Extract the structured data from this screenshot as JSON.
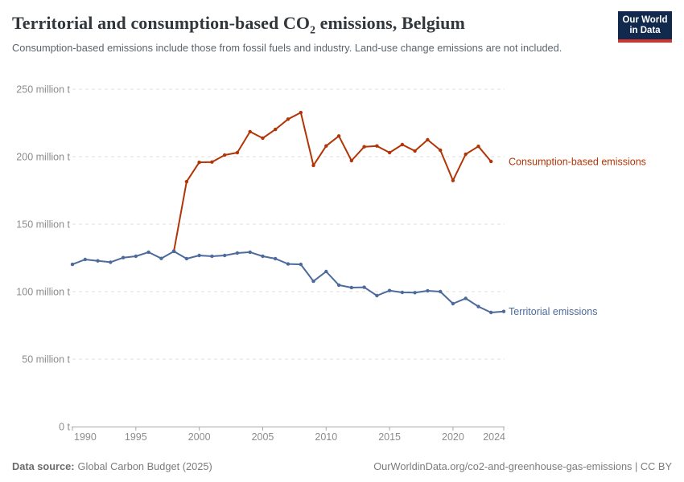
{
  "header": {
    "title_pre": "Territorial and consumption-based CO",
    "title_sub": "2",
    "title_post": " emissions, Belgium",
    "subtitle": "Consumption-based emissions include those from fossil fuels and industry. Land-use change emissions are not included.",
    "logo_line1": "Our World",
    "logo_line2": "in Data"
  },
  "footer": {
    "source_label": "Data source:",
    "source_value": "Global Carbon Budget (2025)",
    "rights": "OurWorldinData.org/co2-and-greenhouse-gas-emissions | CC BY"
  },
  "colors": {
    "consumption": "#b13507",
    "territorial": "#4c6a9c",
    "grid": "#dedede",
    "axis": "#a8a8a8",
    "tick_text": "#8c8c8c"
  },
  "chart_data": {
    "type": "line",
    "title": "Territorial and consumption-based CO2 emissions, Belgium",
    "unit": "million t",
    "xlim": [
      1990,
      2024
    ],
    "ylim": [
      0,
      250
    ],
    "grid": "dashed horizontal gridlines",
    "legend_position": "end-of-line labels, right side",
    "x_ticks": [
      1990,
      1995,
      2000,
      2005,
      2010,
      2015,
      2020,
      2024
    ],
    "y_ticks": [
      {
        "value": 0,
        "label": "0 t"
      },
      {
        "value": 50,
        "label": "50 million t"
      },
      {
        "value": 100,
        "label": "100 million t"
      },
      {
        "value": 150,
        "label": "150 million t"
      },
      {
        "value": 200,
        "label": "200 million t"
      },
      {
        "value": 250,
        "label": "250 million t"
      }
    ],
    "series": [
      {
        "name": "Consumption-based emissions",
        "color": "#b13507",
        "start_year": 1998,
        "values": [
          130.0,
          181.5,
          195.8,
          196.0,
          201.2,
          203.0,
          218.5,
          213.7,
          220.2,
          227.8,
          232.7,
          193.5,
          207.9,
          215.3,
          197.0,
          207.3,
          207.9,
          203.0,
          208.9,
          204.2,
          212.5,
          204.8,
          182.3,
          201.8,
          207.6,
          196.4
        ]
      },
      {
        "name": "Territorial emissions",
        "color": "#4c6a9c",
        "start_year": 1990,
        "values": [
          120.2,
          123.8,
          122.8,
          121.8,
          125.2,
          126.2,
          129.2,
          124.6,
          129.8,
          124.4,
          126.8,
          126.2,
          126.8,
          128.6,
          129.2,
          126.2,
          124.4,
          120.5,
          120.2,
          107.7,
          114.9,
          104.8,
          103.0,
          103.2,
          97.0,
          100.8,
          99.4,
          99.2,
          100.6,
          100.0,
          91.1,
          95.0,
          88.9,
          84.5,
          85.3
        ]
      }
    ]
  }
}
